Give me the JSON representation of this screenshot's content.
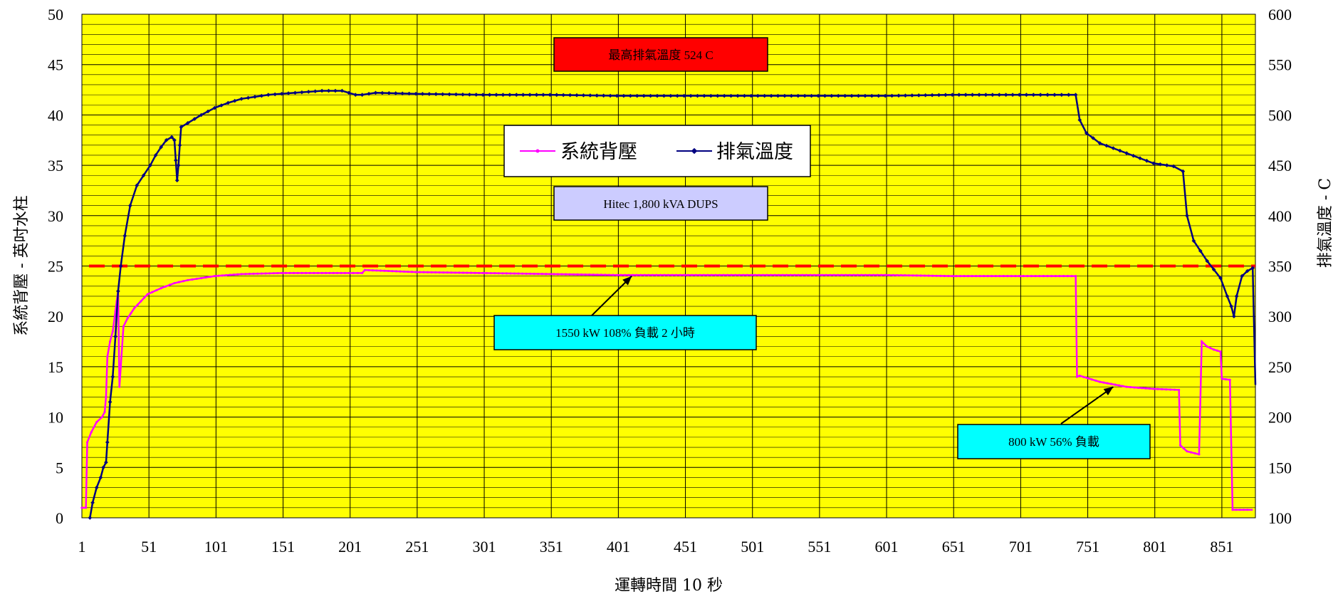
{
  "chart_data": {
    "type": "line",
    "xlabel": "運轉時間 10 秒",
    "ylabel_left": "系統背壓 - 英吋水柱",
    "ylabel_right": "排氣溫度 - C",
    "x_ticks": [
      1,
      51,
      101,
      151,
      201,
      251,
      301,
      351,
      401,
      451,
      501,
      551,
      601,
      651,
      701,
      751,
      801,
      851
    ],
    "xlim": [
      1,
      876
    ],
    "ylim_left": [
      0,
      50
    ],
    "ylim_right": [
      100,
      600
    ],
    "y_ticks_left": [
      0,
      5,
      10,
      15,
      20,
      25,
      30,
      35,
      40,
      45,
      50
    ],
    "y_ticks_right": [
      100,
      150,
      200,
      250,
      300,
      350,
      400,
      450,
      500,
      550,
      600
    ],
    "grid": true,
    "legend_position": "center-top",
    "background_color": "#ffff00",
    "reference_line": {
      "axis": "left",
      "value": 25,
      "color": "#ff0000",
      "style": "dashed"
    },
    "series": [
      {
        "name": "系統背壓",
        "axis": "left",
        "color": "#ff00ff",
        "marker": "dot",
        "points": [
          [
            1,
            1
          ],
          [
            4,
            1
          ],
          [
            5,
            7.5
          ],
          [
            8,
            8.5
          ],
          [
            12,
            9.5
          ],
          [
            16,
            10
          ],
          [
            18,
            10.5
          ],
          [
            19,
            12
          ],
          [
            20,
            16
          ],
          [
            22,
            17.5
          ],
          [
            24,
            18.5
          ],
          [
            26,
            20.5
          ],
          [
            27,
            21.5
          ],
          [
            28,
            22.5
          ],
          [
            29,
            13
          ],
          [
            30,
            15
          ],
          [
            32,
            19
          ],
          [
            35,
            19.8
          ],
          [
            40,
            20.8
          ],
          [
            45,
            21.5
          ],
          [
            50,
            22.2
          ],
          [
            60,
            22.8
          ],
          [
            70,
            23.3
          ],
          [
            80,
            23.6
          ],
          [
            90,
            23.8
          ],
          [
            100,
            24
          ],
          [
            120,
            24.2
          ],
          [
            150,
            24.3
          ],
          [
            180,
            24.3
          ],
          [
            200,
            24.3
          ],
          [
            210,
            24.3
          ],
          [
            212,
            24.6
          ],
          [
            250,
            24.4
          ],
          [
            300,
            24.3
          ],
          [
            350,
            24.2
          ],
          [
            400,
            24.1
          ],
          [
            450,
            24.1
          ],
          [
            500,
            24.1
          ],
          [
            550,
            24.1
          ],
          [
            600,
            24.1
          ],
          [
            650,
            24.0
          ],
          [
            700,
            24.0
          ],
          [
            742,
            24.0
          ],
          [
            743,
            14
          ],
          [
            745,
            14.1
          ],
          [
            760,
            13.5
          ],
          [
            780,
            13.0
          ],
          [
            800,
            12.8
          ],
          [
            819,
            12.7
          ],
          [
            820,
            7.2
          ],
          [
            825,
            6.6
          ],
          [
            834,
            6.3
          ],
          [
            836,
            17.5
          ],
          [
            840,
            17
          ],
          [
            845,
            16.7
          ],
          [
            850,
            16.5
          ],
          [
            851,
            13.8
          ],
          [
            857,
            13.7
          ],
          [
            859,
            0.8
          ],
          [
            870,
            0.8
          ],
          [
            874,
            0.8
          ]
        ]
      },
      {
        "name": "排氣溫度",
        "axis": "right",
        "color": "#000080",
        "marker": "diamond",
        "points": [
          [
            7,
            100
          ],
          [
            9,
            115
          ],
          [
            12,
            130
          ],
          [
            15,
            140
          ],
          [
            17,
            150
          ],
          [
            19,
            155
          ],
          [
            20,
            175
          ],
          [
            22,
            215
          ],
          [
            24,
            240
          ],
          [
            26,
            280
          ],
          [
            28,
            325
          ],
          [
            30,
            350
          ],
          [
            33,
            380
          ],
          [
            37,
            410
          ],
          [
            42,
            430
          ],
          [
            47,
            440
          ],
          [
            52,
            450
          ],
          [
            56,
            460
          ],
          [
            60,
            468
          ],
          [
            64,
            475
          ],
          [
            68,
            478
          ],
          [
            70,
            475
          ],
          [
            71,
            455
          ],
          [
            72,
            435
          ],
          [
            73,
            450
          ],
          [
            74,
            470
          ],
          [
            75,
            488
          ],
          [
            80,
            492
          ],
          [
            90,
            500
          ],
          [
            100,
            507
          ],
          [
            110,
            512
          ],
          [
            120,
            516
          ],
          [
            140,
            520
          ],
          [
            160,
            522
          ],
          [
            180,
            524
          ],
          [
            195,
            524
          ],
          [
            200,
            522
          ],
          [
            205,
            520
          ],
          [
            210,
            520
          ],
          [
            220,
            522
          ],
          [
            250,
            521
          ],
          [
            300,
            520
          ],
          [
            350,
            520
          ],
          [
            400,
            519
          ],
          [
            450,
            519
          ],
          [
            500,
            519
          ],
          [
            550,
            519
          ],
          [
            600,
            519
          ],
          [
            650,
            520
          ],
          [
            700,
            520
          ],
          [
            742,
            520
          ],
          [
            745,
            495
          ],
          [
            750,
            482
          ],
          [
            760,
            472
          ],
          [
            780,
            462
          ],
          [
            800,
            452
          ],
          [
            815,
            449
          ],
          [
            822,
            444
          ],
          [
            825,
            400
          ],
          [
            830,
            375
          ],
          [
            840,
            355
          ],
          [
            850,
            338
          ],
          [
            855,
            320
          ],
          [
            858,
            310
          ],
          [
            860,
            300
          ],
          [
            862,
            320
          ],
          [
            866,
            340
          ],
          [
            870,
            345
          ],
          [
            874,
            348
          ],
          [
            876,
            232
          ]
        ]
      }
    ],
    "annotations": [
      {
        "text": "最高排氣溫度 524 C",
        "fill": "#ff0000",
        "border": "#000000"
      },
      {
        "text": "Hitec 1,800 kVA DUPS",
        "fill": "#ccccff",
        "border": "#000000"
      },
      {
        "text": "1550 kW 108% 負載 2 小時",
        "fill": "#00ffff",
        "border": "#000000",
        "arrow_to": [
          411,
          24.0
        ]
      },
      {
        "text": "800 kW 56% 負載",
        "fill": "#00ffff",
        "border": "#000000",
        "arrow_to": [
          770,
          13.0
        ]
      }
    ]
  }
}
